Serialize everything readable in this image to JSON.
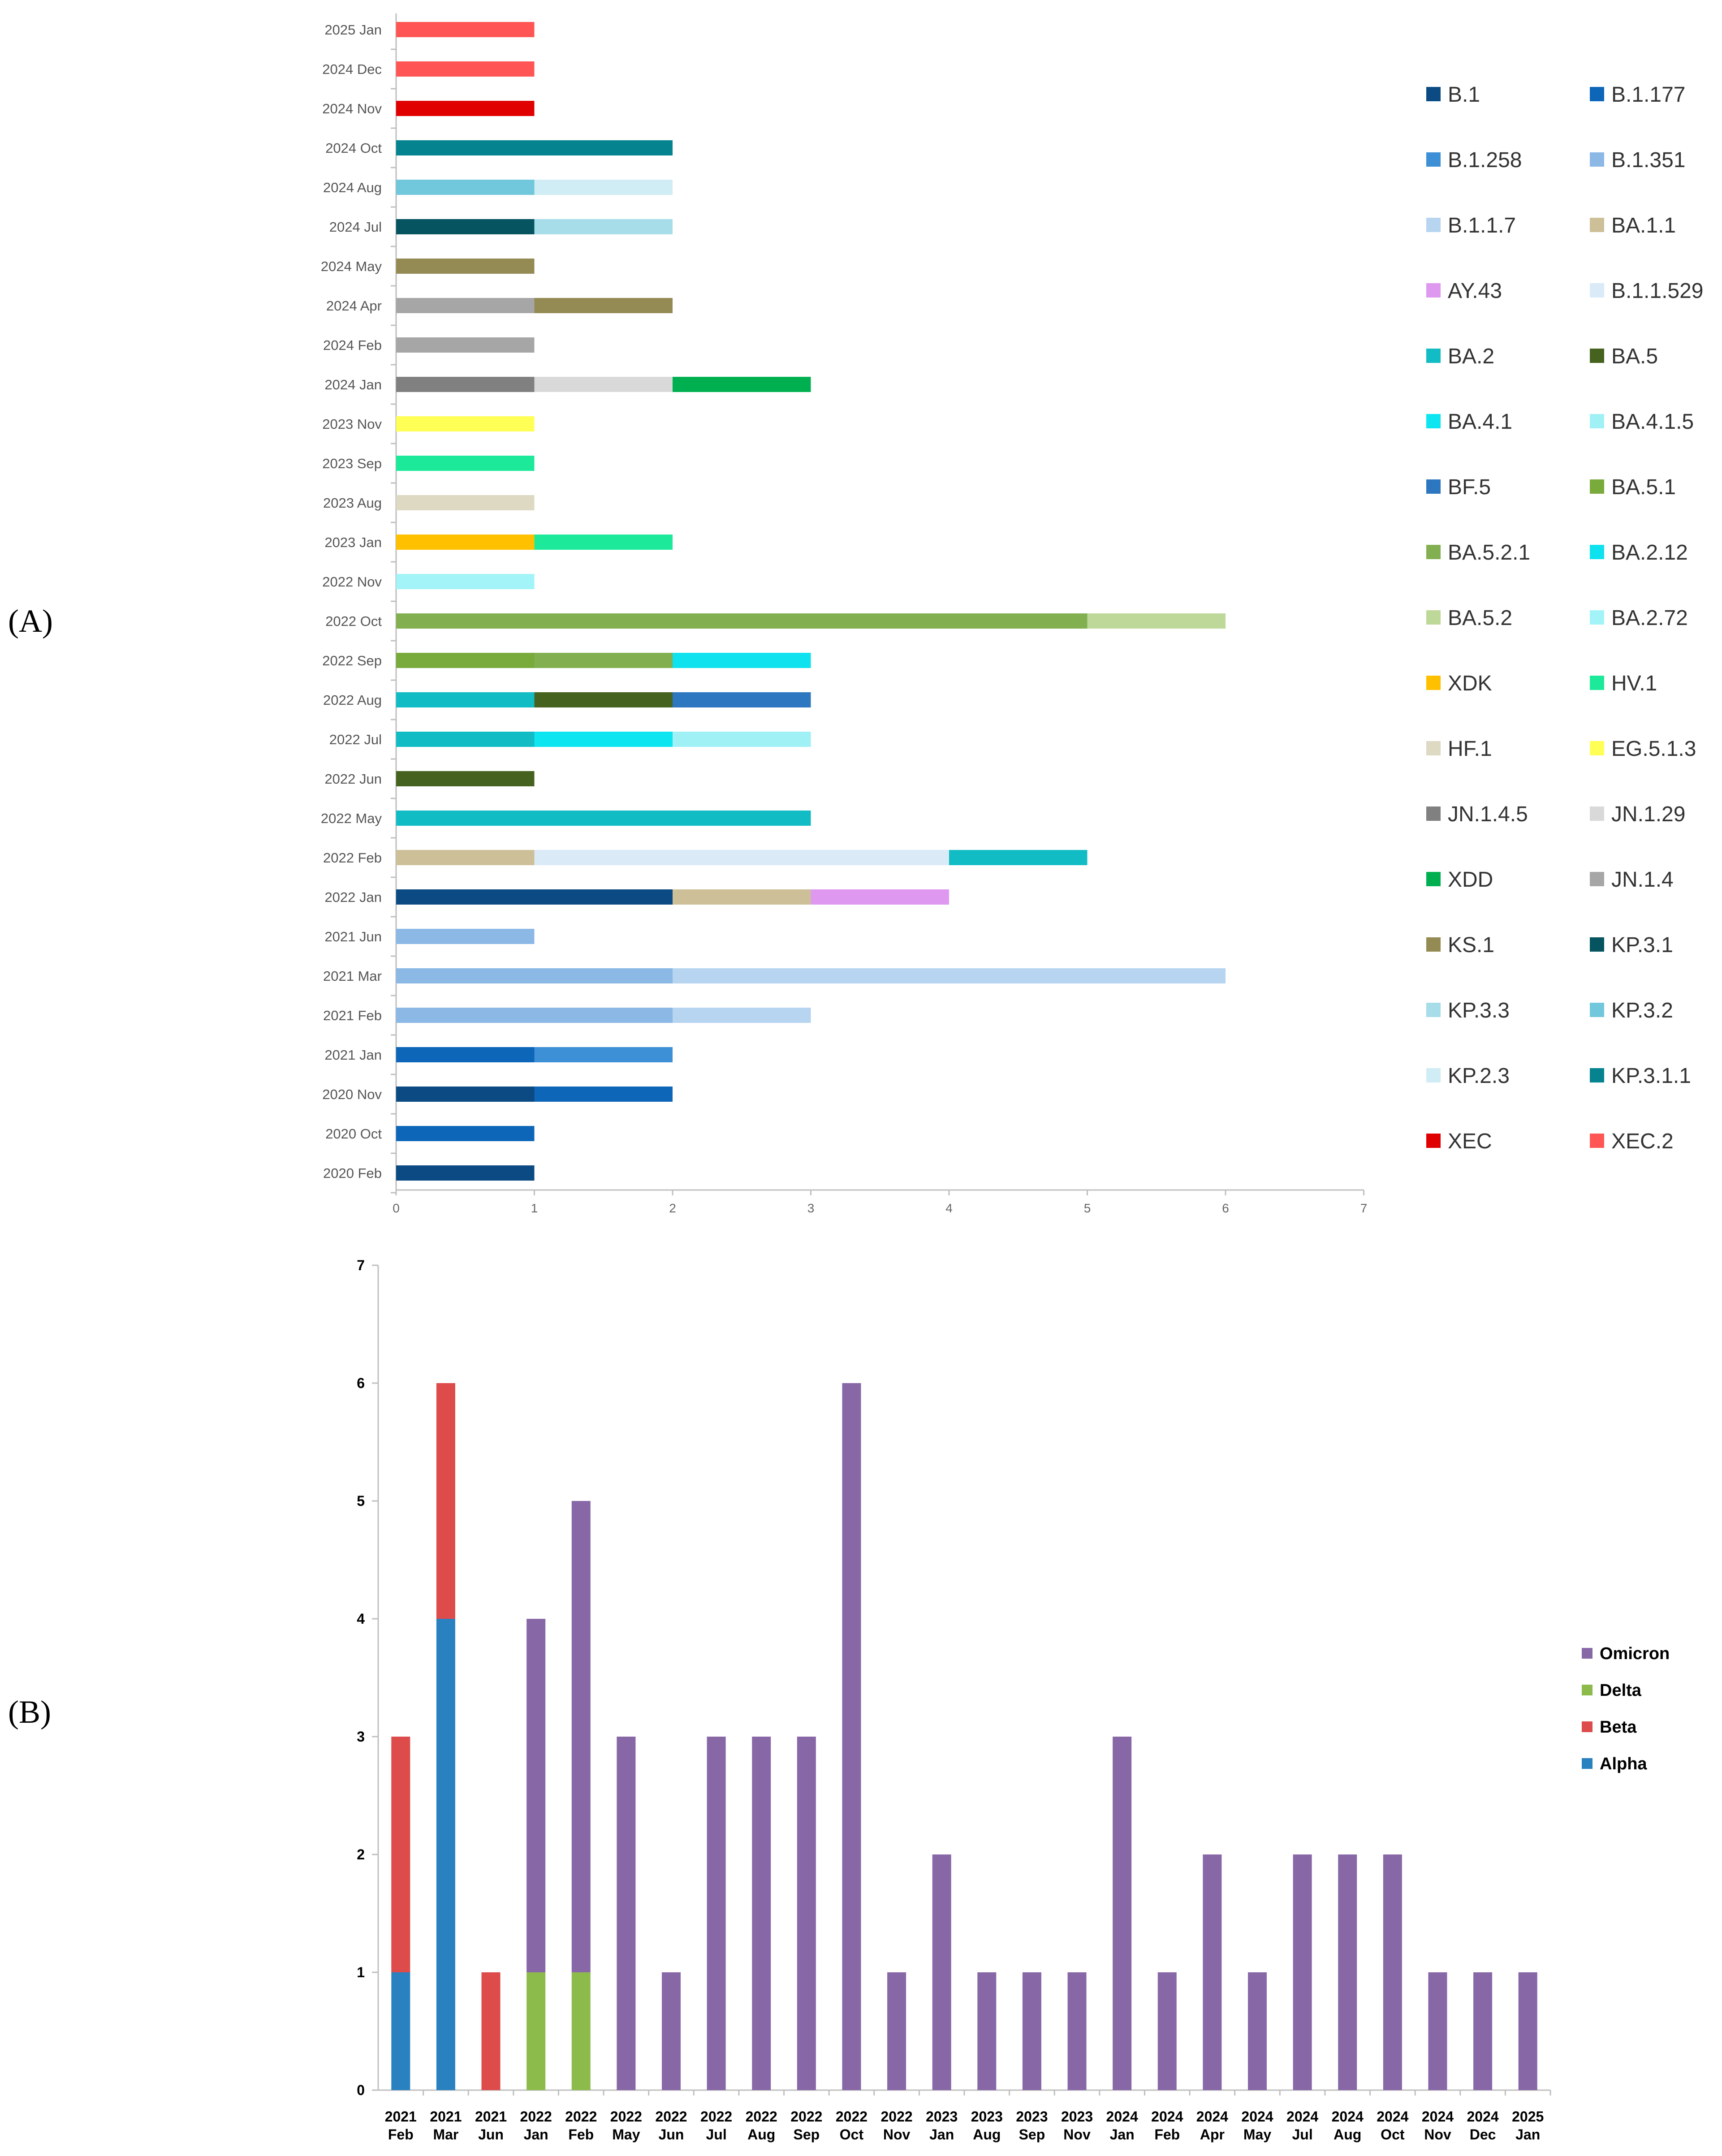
{
  "panels": {
    "a": "(A)",
    "b": "(B)"
  },
  "chart_data": [
    {
      "type": "bar",
      "orientation": "horizontal",
      "stacked": true,
      "panel": "A",
      "xlim": [
        0,
        7
      ],
      "xticks": [
        "0",
        "1",
        "2",
        "3",
        "4",
        "5",
        "6",
        "7"
      ],
      "legend_position": "right",
      "legend": [
        {
          "name": "B.1",
          "color": "#0b4a82"
        },
        {
          "name": "B.1.177",
          "color": "#0d66b8"
        },
        {
          "name": "B.1.258",
          "color": "#3d8fd6"
        },
        {
          "name": "B.1.351",
          "color": "#8cb8e6"
        },
        {
          "name": "B.1.1.7",
          "color": "#b7d4f0"
        },
        {
          "name": "BA.1.1",
          "color": "#cdbf97"
        },
        {
          "name": "AY.43",
          "color": "#de98f0"
        },
        {
          "name": "B.1.1.529",
          "color": "#daeaf7"
        },
        {
          "name": "BA.2",
          "color": "#12bcc4"
        },
        {
          "name": "BA.5",
          "color": "#46621f"
        },
        {
          "name": "BA.4.1",
          "color": "#0de6f0"
        },
        {
          "name": "BA.4.1.5",
          "color": "#a0f1f6"
        },
        {
          "name": "BF.5",
          "color": "#2c77c0"
        },
        {
          "name": "BA.5.1",
          "color": "#79aa3c"
        },
        {
          "name": "BA.5.2.1",
          "color": "#82b050"
        },
        {
          "name": "BA.2.12",
          "color": "#0ee2ee"
        },
        {
          "name": "BA.5.2",
          "color": "#bed89a"
        },
        {
          "name": "BA.2.72",
          "color": "#a2f4f8"
        },
        {
          "name": "XDK",
          "color": "#ffc000"
        },
        {
          "name": "HV.1",
          "color": "#1de99a"
        },
        {
          "name": "HF.1",
          "color": "#ddd9c3"
        },
        {
          "name": "EG.5.1.3",
          "color": "#ffff55"
        },
        {
          "name": "JN.1.4.5",
          "color": "#808080"
        },
        {
          "name": "JN.1.29",
          "color": "#d9d9d9"
        },
        {
          "name": "XDD",
          "color": "#00b050"
        },
        {
          "name": "JN.1.4",
          "color": "#a6a6a6"
        },
        {
          "name": "KS.1",
          "color": "#948a54"
        },
        {
          "name": "KP.3.1",
          "color": "#05545f"
        },
        {
          "name": "KP.3.3",
          "color": "#a6dde9"
        },
        {
          "name": "KP.3.2",
          "color": "#71c7db"
        },
        {
          "name": "KP.2.3",
          "color": "#d0ecf4"
        },
        {
          "name": "KP.3.1.1",
          "color": "#05838f"
        },
        {
          "name": "XEC",
          "color": "#e00000"
        },
        {
          "name": "XEC.2",
          "color": "#ff5555"
        }
      ],
      "rows": [
        {
          "label": "2025 Jan",
          "segments": [
            {
              "variant": "XEC.2",
              "value": 1
            }
          ]
        },
        {
          "label": "2024 Dec",
          "segments": [
            {
              "variant": "XEC.2",
              "value": 1
            }
          ]
        },
        {
          "label": "2024 Nov",
          "segments": [
            {
              "variant": "XEC",
              "value": 1
            }
          ]
        },
        {
          "label": "2024 Oct",
          "segments": [
            {
              "variant": "KP.3.1.1",
              "value": 2
            }
          ]
        },
        {
          "label": "2024 Aug",
          "segments": [
            {
              "variant": "KP.3.2",
              "value": 1
            },
            {
              "variant": "KP.2.3",
              "value": 1
            }
          ]
        },
        {
          "label": "2024 Jul",
          "segments": [
            {
              "variant": "KP.3.1",
              "value": 1
            },
            {
              "variant": "KP.3.3",
              "value": 1
            }
          ]
        },
        {
          "label": "2024 May",
          "segments": [
            {
              "variant": "KS.1",
              "value": 1
            }
          ]
        },
        {
          "label": "2024 Apr",
          "segments": [
            {
              "variant": "JN.1.4",
              "value": 1
            },
            {
              "variant": "KS.1",
              "value": 1
            }
          ]
        },
        {
          "label": "2024 Feb",
          "segments": [
            {
              "variant": "JN.1.4",
              "value": 1
            }
          ]
        },
        {
          "label": "2024 Jan",
          "segments": [
            {
              "variant": "JN.1.4.5",
              "value": 1
            },
            {
              "variant": "JN.1.29",
              "value": 1
            },
            {
              "variant": "XDD",
              "value": 1
            }
          ]
        },
        {
          "label": "2023 Nov",
          "segments": [
            {
              "variant": "EG.5.1.3",
              "value": 1
            }
          ]
        },
        {
          "label": "2023 Sep",
          "segments": [
            {
              "variant": "HV.1",
              "value": 1
            }
          ]
        },
        {
          "label": "2023 Aug",
          "segments": [
            {
              "variant": "HF.1",
              "value": 1
            }
          ]
        },
        {
          "label": "2023 Jan",
          "segments": [
            {
              "variant": "XDK",
              "value": 1
            },
            {
              "variant": "HV.1",
              "value": 1
            }
          ]
        },
        {
          "label": "2022 Nov",
          "segments": [
            {
              "variant": "BA.2.72",
              "value": 1
            }
          ]
        },
        {
          "label": "2022 Oct",
          "segments": [
            {
              "variant": "BA.5.2.1",
              "value": 5
            },
            {
              "variant": "BA.5.2",
              "value": 1
            }
          ]
        },
        {
          "label": "2022 Sep",
          "segments": [
            {
              "variant": "BA.5.1",
              "value": 1
            },
            {
              "variant": "BA.5.2.1",
              "value": 1
            },
            {
              "variant": "BA.2.12",
              "value": 1
            }
          ]
        },
        {
          "label": "2022 Aug",
          "segments": [
            {
              "variant": "BA.2",
              "value": 1
            },
            {
              "variant": "BA.5",
              "value": 1
            },
            {
              "variant": "BF.5",
              "value": 1
            }
          ]
        },
        {
          "label": "2022 Jul",
          "segments": [
            {
              "variant": "BA.2",
              "value": 1
            },
            {
              "variant": "BA.4.1",
              "value": 1
            },
            {
              "variant": "BA.4.1.5",
              "value": 1
            }
          ]
        },
        {
          "label": "2022 Jun",
          "segments": [
            {
              "variant": "BA.5",
              "value": 1
            }
          ]
        },
        {
          "label": "2022 May",
          "segments": [
            {
              "variant": "BA.2",
              "value": 3
            }
          ]
        },
        {
          "label": "2022 Feb",
          "segments": [
            {
              "variant": "BA.1.1",
              "value": 1
            },
            {
              "variant": "B.1.1.529",
              "value": 3
            },
            {
              "variant": "BA.2",
              "value": 1
            }
          ]
        },
        {
          "label": "2022 Jan",
          "segments": [
            {
              "variant": "B.1",
              "value": 2
            },
            {
              "variant": "BA.1.1",
              "value": 1
            },
            {
              "variant": "AY.43",
              "value": 1
            }
          ]
        },
        {
          "label": "2021 Jun",
          "segments": [
            {
              "variant": "B.1.351",
              "value": 1
            }
          ]
        },
        {
          "label": "2021 Mar",
          "segments": [
            {
              "variant": "B.1.351",
              "value": 2
            },
            {
              "variant": "B.1.1.7",
              "value": 4
            }
          ]
        },
        {
          "label": "2021 Feb",
          "segments": [
            {
              "variant": "B.1.351",
              "value": 2
            },
            {
              "variant": "B.1.1.7",
              "value": 1
            }
          ]
        },
        {
          "label": "2021 Jan",
          "segments": [
            {
              "variant": "B.1.177",
              "value": 1
            },
            {
              "variant": "B.1.258",
              "value": 1
            }
          ]
        },
        {
          "label": "2020 Nov",
          "segments": [
            {
              "variant": "B.1",
              "value": 1
            },
            {
              "variant": "B.1.177",
              "value": 1
            }
          ]
        },
        {
          "label": "2020 Oct",
          "segments": [
            {
              "variant": "B.1.177",
              "value": 1
            }
          ]
        },
        {
          "label": "2020 Feb",
          "segments": [
            {
              "variant": "B.1",
              "value": 1
            }
          ]
        }
      ]
    },
    {
      "type": "bar",
      "orientation": "vertical",
      "stacked": true,
      "panel": "B",
      "ylim": [
        0,
        7
      ],
      "yticks": [
        "0",
        "1",
        "2",
        "3",
        "4",
        "5",
        "6",
        "7"
      ],
      "legend_position": "right",
      "series": [
        {
          "name": "Alpha",
          "color": "#2a81bf"
        },
        {
          "name": "Beta",
          "color": "#dd4b4b"
        },
        {
          "name": "Delta",
          "color": "#8cbb4c"
        },
        {
          "name": "Omicron",
          "color": "#8867a7"
        }
      ],
      "legend": [
        "Omicron",
        "Delta",
        "Beta",
        "Alpha"
      ],
      "categories": [
        {
          "year": "2021",
          "month": "Feb"
        },
        {
          "year": "2021",
          "month": "Mar"
        },
        {
          "year": "2021",
          "month": "Jun"
        },
        {
          "year": "2022",
          "month": "Jan"
        },
        {
          "year": "2022",
          "month": "Feb"
        },
        {
          "year": "2022",
          "month": "May"
        },
        {
          "year": "2022",
          "month": "Jun"
        },
        {
          "year": "2022",
          "month": "Jul"
        },
        {
          "year": "2022",
          "month": "Aug"
        },
        {
          "year": "2022",
          "month": "Sep"
        },
        {
          "year": "2022",
          "month": "Oct"
        },
        {
          "year": "2022",
          "month": "Nov"
        },
        {
          "year": "2023",
          "month": "Jan"
        },
        {
          "year": "2023",
          "month": "Aug"
        },
        {
          "year": "2023",
          "month": "Sep"
        },
        {
          "year": "2023",
          "month": "Nov"
        },
        {
          "year": "2024",
          "month": "Jan"
        },
        {
          "year": "2024",
          "month": "Feb"
        },
        {
          "year": "2024",
          "month": "Apr"
        },
        {
          "year": "2024",
          "month": "May"
        },
        {
          "year": "2024",
          "month": "Jul"
        },
        {
          "year": "2024",
          "month": "Aug"
        },
        {
          "year": "2024",
          "month": "Oct"
        },
        {
          "year": "2024",
          "month": "Nov"
        },
        {
          "year": "2024",
          "month": "Dec"
        },
        {
          "year": "2025",
          "month": "Jan"
        }
      ],
      "values": {
        "Alpha": [
          1,
          4,
          0,
          0,
          0,
          0,
          0,
          0,
          0,
          0,
          0,
          0,
          0,
          0,
          0,
          0,
          0,
          0,
          0,
          0,
          0,
          0,
          0,
          0,
          0,
          0
        ],
        "Beta": [
          2,
          2,
          1,
          0,
          0,
          0,
          0,
          0,
          0,
          0,
          0,
          0,
          0,
          0,
          0,
          0,
          0,
          0,
          0,
          0,
          0,
          0,
          0,
          0,
          0,
          0
        ],
        "Delta": [
          0,
          0,
          0,
          1,
          1,
          0,
          0,
          0,
          0,
          0,
          0,
          0,
          0,
          0,
          0,
          0,
          0,
          0,
          0,
          0,
          0,
          0,
          0,
          0,
          0,
          0
        ],
        "Omicron": [
          0,
          0,
          0,
          3,
          4,
          3,
          1,
          3,
          3,
          3,
          6,
          1,
          2,
          1,
          1,
          1,
          3,
          1,
          2,
          1,
          2,
          2,
          2,
          1,
          1,
          1
        ]
      }
    }
  ]
}
